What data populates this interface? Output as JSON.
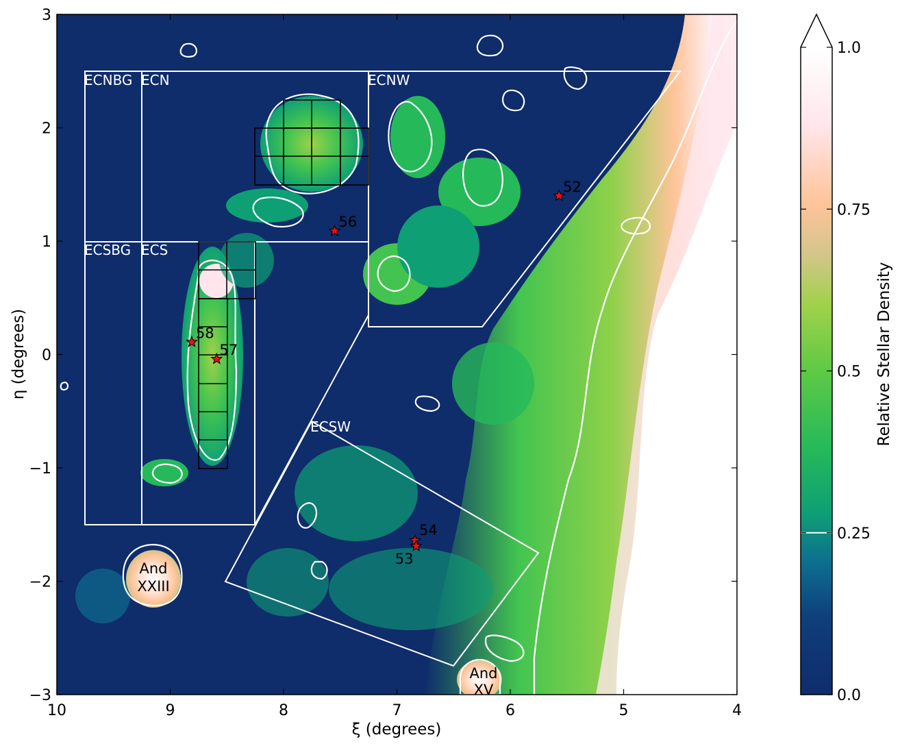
{
  "chart_data": {
    "type": "heatmap",
    "xlabel": "ξ (degrees)",
    "ylabel": "η (degrees)",
    "xlim": [
      10,
      4
    ],
    "ylim": [
      -3,
      3
    ],
    "x_ticks": [
      "10",
      "9",
      "8",
      "7",
      "6",
      "5",
      "4"
    ],
    "y_ticks": [
      "−3",
      "−2",
      "−1",
      "0",
      "1",
      "2",
      "3"
    ],
    "colorbar": {
      "label": "Relative Stellar Density",
      "range": [
        0.0,
        1.0
      ],
      "ticks": [
        "0.0",
        "0.25",
        "0.5",
        "0.75",
        "1.0"
      ],
      "contour_level": 0.25,
      "extend": "max",
      "colors": [
        "#0f2c6b",
        "#0d6c8f",
        "#0e9f75",
        "#43c450",
        "#8fd14a",
        "#d8c48c",
        "#ffc49a",
        "#fff0f4",
        "#ffffff"
      ]
    },
    "regions": [
      {
        "name": "ECNBG",
        "label": "ECNBG"
      },
      {
        "name": "ECN",
        "label": "ECN"
      },
      {
        "name": "ECNW",
        "label": "ECNW"
      },
      {
        "name": "ECSBG",
        "label": "ECSBG"
      },
      {
        "name": "ECS",
        "label": "ECS"
      },
      {
        "name": "ECSW",
        "label": "ECSW"
      }
    ],
    "clusters": [
      {
        "id": "52",
        "xi": 5.57,
        "eta": 1.4
      },
      {
        "id": "56",
        "xi": 7.55,
        "eta": 1.09
      },
      {
        "id": "58",
        "xi": 8.81,
        "eta": 0.11
      },
      {
        "id": "57",
        "xi": 8.59,
        "eta": -0.04
      },
      {
        "id": "54",
        "xi": 6.84,
        "eta": -1.64
      },
      {
        "id": "53",
        "xi": 6.83,
        "eta": -1.69
      }
    ],
    "dwarf_galaxies": [
      {
        "name": "And XXIII",
        "lines": [
          "And",
          "XXIII"
        ],
        "xi": 9.13,
        "eta": -1.97
      },
      {
        "name": "And XV",
        "lines": [
          "And",
          "XV"
        ],
        "xi": 6.21,
        "eta": -2.85
      }
    ]
  }
}
